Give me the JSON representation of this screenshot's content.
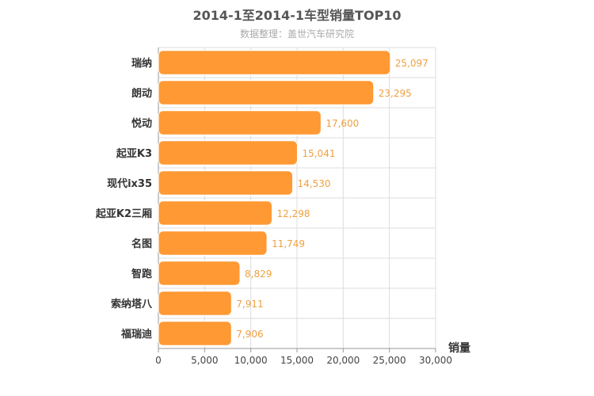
{
  "chart_data": {
    "type": "bar",
    "orientation": "horizontal",
    "title": "2014-1至2014-1车型销量TOP10",
    "subtitle": "数据整理：盖世汽车研究院",
    "categories": [
      "瑞纳",
      "朗动",
      "悦动",
      "起亚K3",
      "现代ix35",
      "起亚K2三厢",
      "名图",
      "智跑",
      "索纳塔八",
      "福瑞迪"
    ],
    "values": [
      25097,
      23295,
      17600,
      15041,
      14530,
      12298,
      11749,
      8829,
      7911,
      7906
    ],
    "value_labels": [
      "25,097",
      "23,295",
      "17,600",
      "15,041",
      "14,530",
      "12,298",
      "11,749",
      "8,829",
      "7,911",
      "7,906"
    ],
    "xlabel": "销量",
    "ylabel": "",
    "xlim": [
      0,
      30000
    ],
    "xticks": [
      0,
      5000,
      10000,
      15000,
      20000,
      25000,
      30000
    ],
    "xtick_labels": [
      "0",
      "5,000",
      "10,000",
      "15,000",
      "20,000",
      "25,000",
      "30,000"
    ],
    "grid": true,
    "bar_color": "#ff9933"
  }
}
